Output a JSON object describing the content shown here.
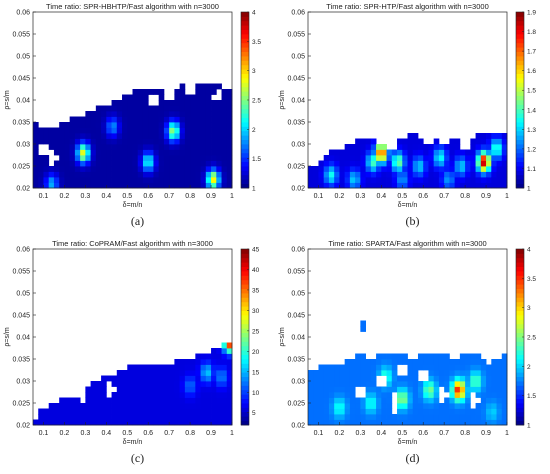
{
  "colorscale": [
    "#00007f",
    "#0000ff",
    "#0080ff",
    "#00ffff",
    "#80ff80",
    "#ffff00",
    "#ff8000",
    "#ff0000",
    "#7f0000"
  ],
  "panels": [
    {
      "id": "a",
      "caption": "(a)",
      "chart_data": {
        "type": "heatmap",
        "title": "Time ratio: SPR-HBHTP/Fast algorithm with n=3000",
        "xlabel": "δ=m/n",
        "ylabel": "ρ=s/m",
        "xlim": [
          0.05,
          1.0
        ],
        "ylim": [
          0.02,
          0.06
        ],
        "x_ticks": [
          "0.1",
          "0.2",
          "0.3",
          "0.4",
          "0.5",
          "0.6",
          "0.7",
          "0.8",
          "0.9",
          "1"
        ],
        "y_ticks": [
          "0.02",
          "0.025",
          "0.03",
          "0.035",
          "0.04",
          "0.045",
          "0.05",
          "0.055",
          "0.06"
        ],
        "colorbar_ticks": [
          "1",
          "1.5",
          "2",
          "2.5",
          "3",
          "3.5",
          "4"
        ],
        "clim": [
          1,
          4
        ],
        "boundary": [
          0.035,
          0.034,
          0.034,
          0.035,
          0.036,
          0.037,
          0.038,
          0.039,
          0.04,
          0.041,
          0.043,
          0.042,
          0.043,
          0.043,
          0.043,
          0.044,
          0.043,
          0.044,
          0.043,
          0.042
        ],
        "base_value": 1.1,
        "hotspots": [
          {
            "x": 0.29,
            "y": 0.028,
            "v": 2.8
          },
          {
            "x": 0.6,
            "y": 0.026,
            "v": 2.2
          },
          {
            "x": 0.72,
            "y": 0.033,
            "v": 2.6
          },
          {
            "x": 0.91,
            "y": 0.022,
            "v": 2.9
          },
          {
            "x": 0.43,
            "y": 0.034,
            "v": 1.8
          },
          {
            "x": 0.14,
            "y": 0.021,
            "v": 1.9
          }
        ],
        "holes": [
          {
            "x": 0.14,
            "y": 0.027
          },
          {
            "x": 0.1,
            "y": 0.029
          },
          {
            "x": 0.63,
            "y": 0.04
          },
          {
            "x": 0.7,
            "y": 0.041
          },
          {
            "x": 0.8,
            "y": 0.042
          },
          {
            "x": 0.93,
            "y": 0.041
          }
        ]
      }
    },
    {
      "id": "b",
      "caption": "(b)",
      "chart_data": {
        "type": "heatmap",
        "title": "Time ratio: SPR-HTP/Fast algorithm with n=3000",
        "xlabel": "δ=m/n",
        "ylabel": "ρ=s/m",
        "xlim": [
          0.05,
          1.0
        ],
        "ylim": [
          0.02,
          0.06
        ],
        "x_ticks": [
          "0.1",
          "0.2",
          "0.3",
          "0.4",
          "0.5",
          "0.6",
          "0.7",
          "0.8",
          "0.9",
          "1"
        ],
        "y_ticks": [
          "0.02",
          "0.025",
          "0.03",
          "0.035",
          "0.04",
          "0.045",
          "0.05",
          "0.055",
          "0.06"
        ],
        "colorbar_ticks": [
          "1",
          "1.1",
          "1.2",
          "1.3",
          "1.4",
          "1.5",
          "1.6",
          "1.7",
          "1.8",
          "1.9"
        ],
        "clim": [
          1,
          1.9
        ],
        "boundary": [
          0.024,
          0.026,
          0.028,
          0.029,
          0.03,
          0.031,
          0.031,
          0.03,
          0.032,
          0.031,
          0.033,
          0.031,
          0.032,
          0.03,
          0.031,
          0.031,
          0.032,
          0.033,
          0.032,
          0.033
        ],
        "base_value": 1.08,
        "hotspots": [
          {
            "x": 0.16,
            "y": 0.023,
            "v": 1.35
          },
          {
            "x": 0.27,
            "y": 0.022,
            "v": 1.3
          },
          {
            "x": 0.36,
            "y": 0.026,
            "v": 1.4
          },
          {
            "x": 0.4,
            "y": 0.028,
            "v": 1.75
          },
          {
            "x": 0.48,
            "y": 0.026,
            "v": 1.45
          },
          {
            "x": 0.58,
            "y": 0.025,
            "v": 1.3
          },
          {
            "x": 0.68,
            "y": 0.027,
            "v": 1.35
          },
          {
            "x": 0.78,
            "y": 0.025,
            "v": 1.3
          },
          {
            "x": 0.89,
            "y": 0.026,
            "v": 1.85
          },
          {
            "x": 0.95,
            "y": 0.029,
            "v": 1.4
          },
          {
            "x": 0.72,
            "y": 0.022,
            "v": 1.25
          },
          {
            "x": 0.5,
            "y": 0.022,
            "v": 1.25
          }
        ],
        "holes": [
          {
            "x": 0.45,
            "y": 0.03
          },
          {
            "x": 0.62,
            "y": 0.031
          },
          {
            "x": 0.8,
            "y": 0.03
          }
        ]
      }
    },
    {
      "id": "c",
      "caption": "(c)",
      "chart_data": {
        "type": "heatmap",
        "title": "Time ratio: CoPRAM/Fast algorithm with n=3000",
        "xlabel": "δ=m/n",
        "ylabel": "ρ=s/m",
        "xlim": [
          0.05,
          1.0
        ],
        "ylim": [
          0.02,
          0.06
        ],
        "x_ticks": [
          "0.1",
          "0.2",
          "0.3",
          "0.4",
          "0.5",
          "0.6",
          "0.7",
          "0.8",
          "0.9",
          "1"
        ],
        "y_ticks": [
          "0.02",
          "0.025",
          "0.03",
          "0.035",
          "0.04",
          "0.045",
          "0.05",
          "0.055",
          "0.06"
        ],
        "colorbar_ticks": [
          "5",
          "10",
          "15",
          "20",
          "25",
          "30",
          "35",
          "40",
          "45"
        ],
        "clim": [
          2,
          45
        ],
        "boundary": [
          0.021,
          0.024,
          0.025,
          0.026,
          0.027,
          0.028,
          0.03,
          0.031,
          0.032,
          0.033,
          0.034,
          0.034,
          0.033,
          0.034,
          0.035,
          0.035,
          0.036,
          0.037,
          0.038,
          0.039
        ],
        "base_value": 6,
        "hotspots": [
          {
            "x": 0.99,
            "y": 0.039,
            "v": 42
          },
          {
            "x": 0.88,
            "y": 0.032,
            "v": 16
          },
          {
            "x": 0.8,
            "y": 0.029,
            "v": 12
          },
          {
            "x": 0.95,
            "y": 0.031,
            "v": 13
          },
          {
            "x": 0.2,
            "y": 0.022,
            "v": 3
          },
          {
            "x": 0.35,
            "y": 0.024,
            "v": 3
          }
        ],
        "holes": [
          {
            "x": 0.15,
            "y": 0.026
          },
          {
            "x": 0.28,
            "y": 0.027
          },
          {
            "x": 0.42,
            "y": 0.028
          }
        ]
      }
    },
    {
      "id": "d",
      "caption": "(d)",
      "chart_data": {
        "type": "heatmap",
        "title": "Time ratio: SPARTA/Fast algorithm with n=3000",
        "xlabel": "δ=m/n",
        "ylabel": "ρ=s/m",
        "xlim": [
          0.05,
          1.0
        ],
        "ylim": [
          0.02,
          0.06
        ],
        "x_ticks": [
          "0.1",
          "0.2",
          "0.3",
          "0.4",
          "0.5",
          "0.6",
          "0.7",
          "0.8",
          "0.9",
          "1"
        ],
        "y_ticks": [
          "0.02",
          "0.025",
          "0.03",
          "0.035",
          "0.04",
          "0.045",
          "0.05",
          "0.055",
          "0.06"
        ],
        "colorbar_ticks": [
          "1",
          "1.5",
          "2",
          "2.5",
          "3",
          "3.5",
          "4"
        ],
        "clim": [
          1,
          4
        ],
        "boundary": [
          0.032,
          0.033,
          0.034,
          0.034,
          0.035,
          0.036,
          0.035,
          0.036,
          0.037,
          0.036,
          0.035,
          0.036,
          0.037,
          0.036,
          0.035,
          0.036,
          0.037,
          0.034,
          0.035,
          0.036
        ],
        "base_value": 1.7,
        "hotspots": [
          {
            "x": 0.77,
            "y": 0.028,
            "v": 3.6
          },
          {
            "x": 0.5,
            "y": 0.026,
            "v": 2.6
          },
          {
            "x": 0.63,
            "y": 0.028,
            "v": 2.5
          },
          {
            "x": 0.85,
            "y": 0.03,
            "v": 2.4
          },
          {
            "x": 0.35,
            "y": 0.025,
            "v": 2.2
          },
          {
            "x": 0.2,
            "y": 0.024,
            "v": 2.2
          },
          {
            "x": 0.42,
            "y": 0.031,
            "v": 2.3
          },
          {
            "x": 0.93,
            "y": 0.023,
            "v": 2.0
          }
        ],
        "holes": [
          {
            "x": 0.4,
            "y": 0.03
          },
          {
            "x": 0.5,
            "y": 0.032
          },
          {
            "x": 0.6,
            "y": 0.031
          },
          {
            "x": 0.3,
            "y": 0.028
          },
          {
            "x": 0.69,
            "y": 0.027
          },
          {
            "x": 0.46,
            "y": 0.025
          },
          {
            "x": 0.84,
            "y": 0.026
          }
        ],
        "islands": [
          {
            "x": 0.31,
            "y": 0.043
          }
        ]
      }
    }
  ]
}
